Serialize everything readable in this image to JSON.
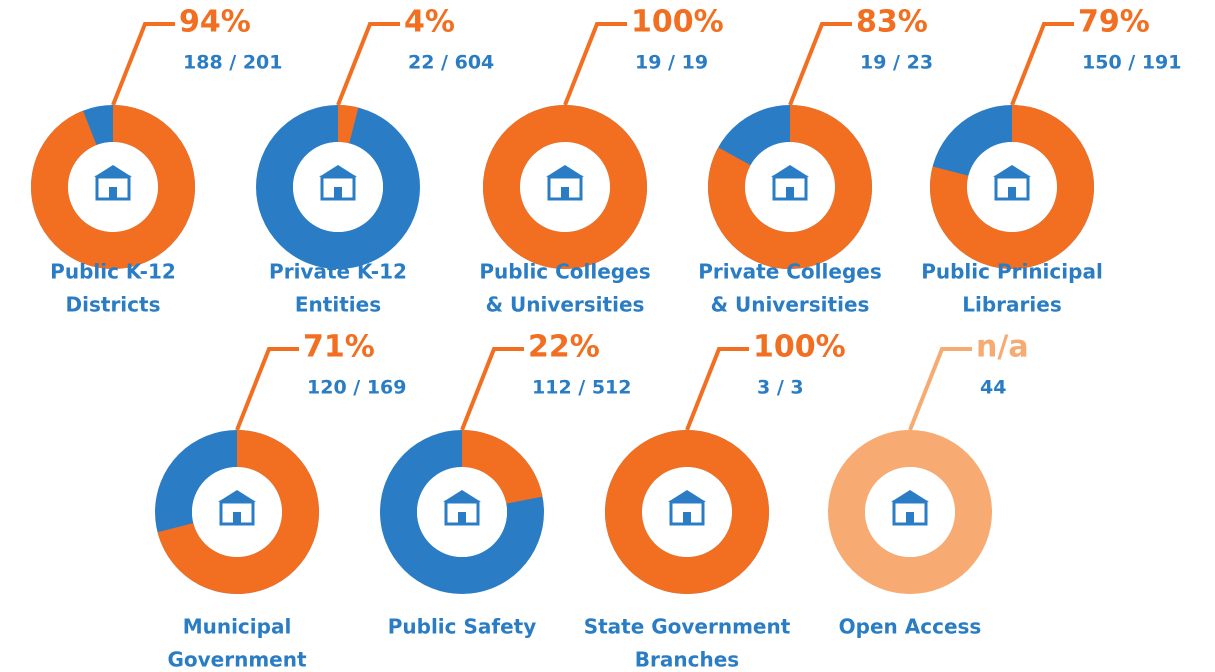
{
  "chart_data": {
    "type": "donut",
    "categories": [
      [
        "Public K-12",
        "Districts"
      ],
      [
        "Private K-12",
        "Entities"
      ],
      [
        "Public Colleges",
        "& Universities"
      ],
      [
        "Private Colleges",
        "& Universities"
      ],
      [
        "Public Prinicipal",
        "Libraries"
      ],
      [
        "Municipal",
        "Government"
      ],
      [
        "Public Safety"
      ],
      [
        "State Government",
        "Branches"
      ],
      [
        "Open Access"
      ]
    ],
    "values": [
      94,
      4,
      100,
      83,
      79,
      71,
      22,
      100,
      null
    ],
    "value_labels": [
      "94%",
      "4%",
      "100%",
      "83%",
      "79%",
      "71%",
      "22%",
      "100%",
      "n/a"
    ],
    "counts": [
      "188 / 201",
      "22 / 604",
      "19 / 19",
      "19 / 23",
      "150 / 191",
      "120 / 169",
      "112 / 512",
      "3 / 3",
      "44"
    ],
    "ylim": [
      0,
      100
    ],
    "colors": {
      "share": "#f26f21",
      "rest": "#2a7dc5",
      "na": "#f7ab72"
    }
  }
}
